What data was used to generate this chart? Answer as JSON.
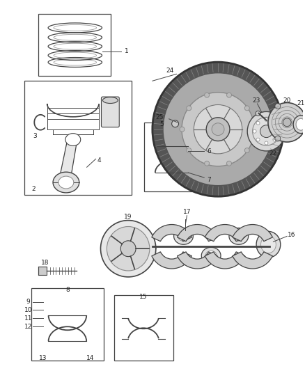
{
  "background_color": "#ffffff",
  "line_color": "#444444",
  "text_color": "#222222",
  "fig_w": 4.38,
  "fig_h": 5.33,
  "dpi": 100
}
